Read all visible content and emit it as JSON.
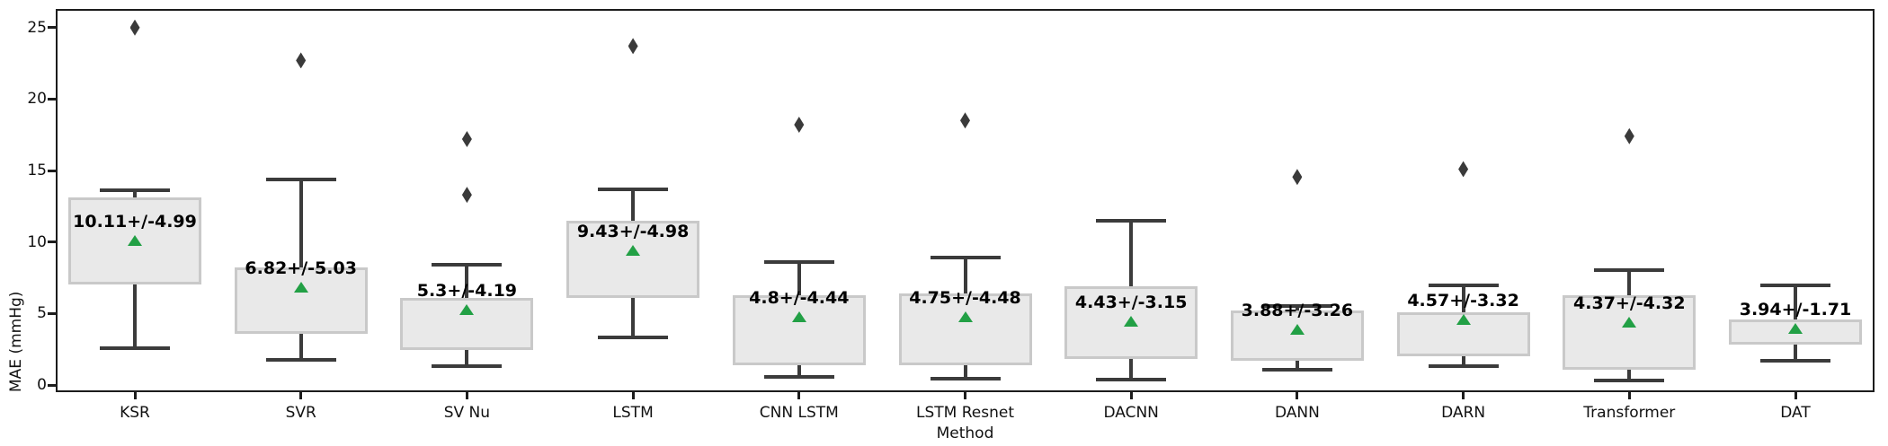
{
  "figure": {
    "title": "",
    "xlabel": "Method",
    "ylabel": "MAE (mmHg)"
  },
  "chart_data": {
    "type": "box",
    "title": "",
    "xlabel": "Method",
    "ylabel": "MAE (mmHg)",
    "ylim": [
      -0.5,
      26.3
    ],
    "yticks": [
      0,
      5,
      10,
      15,
      20,
      25
    ],
    "grid": false,
    "legend": null,
    "categories": [
      "KSR",
      "SVR",
      "SV Nu",
      "LSTM",
      "CNN LSTM",
      "LSTM Resnet",
      "DACNN",
      "DANN",
      "DARN",
      "Transformer",
      "DAT"
    ],
    "series": [
      {
        "method": "KSR",
        "label": "10.11+/-4.99",
        "mean": 10.11,
        "std": 4.99,
        "q1": 7.05,
        "q3": 13.1,
        "whisker_low": 2.6,
        "whisker_high": 13.6,
        "outliers": [
          25.0
        ]
      },
      {
        "method": "SVR",
        "label": "6.82+/-5.03",
        "mean": 6.82,
        "std": 5.03,
        "q1": 3.55,
        "q3": 8.25,
        "whisker_low": 1.75,
        "whisker_high": 14.35,
        "outliers": [
          22.7
        ]
      },
      {
        "method": "SV Nu",
        "label": "5.3+/-4.19",
        "mean": 5.3,
        "std": 4.19,
        "q1": 2.45,
        "q3": 6.1,
        "whisker_low": 1.3,
        "whisker_high": 8.4,
        "outliers": [
          17.2,
          13.3
        ]
      },
      {
        "method": "LSTM",
        "label": "9.43+/-4.98",
        "mean": 9.43,
        "std": 4.98,
        "q1": 6.1,
        "q3": 11.5,
        "whisker_low": 3.3,
        "whisker_high": 13.7,
        "outliers": [
          23.7
        ]
      },
      {
        "method": "CNN LSTM",
        "label": "4.8+/-4.44",
        "mean": 4.8,
        "std": 4.44,
        "q1": 1.4,
        "q3": 6.3,
        "whisker_low": 0.55,
        "whisker_high": 8.6,
        "outliers": [
          18.2
        ]
      },
      {
        "method": "LSTM Resnet",
        "label": "4.75+/-4.48",
        "mean": 4.75,
        "std": 4.48,
        "q1": 1.4,
        "q3": 6.4,
        "whisker_low": 0.45,
        "whisker_high": 8.9,
        "outliers": [
          18.5
        ]
      },
      {
        "method": "DACNN",
        "label": "4.43+/-3.15",
        "mean": 4.43,
        "std": 3.15,
        "q1": 1.8,
        "q3": 6.9,
        "whisker_low": 0.4,
        "whisker_high": 11.5,
        "outliers": []
      },
      {
        "method": "DANN",
        "label": "3.88+/-3.26",
        "mean": 3.88,
        "std": 3.26,
        "q1": 1.7,
        "q3": 5.2,
        "whisker_low": 1.05,
        "whisker_high": 5.5,
        "outliers": [
          14.55
        ]
      },
      {
        "method": "DARN",
        "label": "4.57+/-3.32",
        "mean": 4.57,
        "std": 3.32,
        "q1": 2.0,
        "q3": 5.1,
        "whisker_low": 1.35,
        "whisker_high": 7.0,
        "outliers": [
          15.1
        ]
      },
      {
        "method": "Transformer",
        "label": "4.37+/-4.32",
        "mean": 4.37,
        "std": 4.32,
        "q1": 1.05,
        "q3": 6.25,
        "whisker_low": 0.3,
        "whisker_high": 8.05,
        "outliers": [
          17.4
        ]
      },
      {
        "method": "DAT",
        "label": "3.94+/-1.71",
        "mean": 3.94,
        "std": 1.71,
        "q1": 2.8,
        "q3": 4.6,
        "whisker_low": 1.7,
        "whisker_high": 7.0,
        "outliers": []
      }
    ],
    "colors": {
      "box_fill": "#e9e9e9",
      "box_edge": "#c9c9c9",
      "whisker": "#3b3b3b",
      "mean_marker": "#22a045",
      "outlier": "#3a3a3a",
      "spine": "#1c1c1c",
      "annotation_text": "#000000",
      "tick_text": "#111111",
      "background": "#ffffff"
    }
  }
}
